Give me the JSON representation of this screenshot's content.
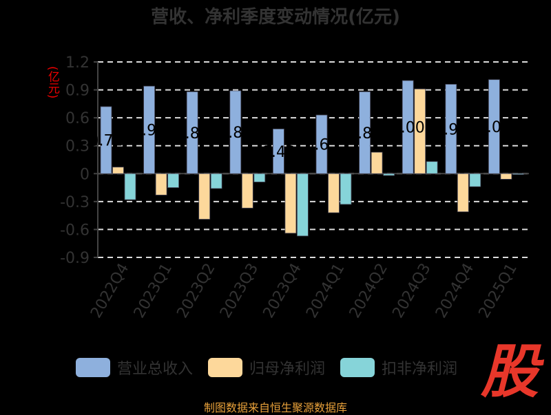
{
  "chart_data": {
    "type": "bar",
    "title": "营收、净利季度变动情况(亿元)",
    "ylabel": "(亿元)",
    "xlabel": "",
    "ylim": [
      -0.9,
      1.2
    ],
    "yticks": [
      "1.2",
      "0.9",
      "0.6",
      "0.3",
      "0",
      "-0.3",
      "-0.6",
      "-0.9"
    ],
    "ytick_values": [
      1.2,
      0.9,
      0.6,
      0.3,
      0,
      -0.3,
      -0.6,
      -0.9
    ],
    "grid": true,
    "legend_position": "bottom",
    "categories": [
      "2022Q4",
      "2023Q1",
      "2023Q2",
      "2023Q3",
      "2023Q4",
      "2024Q1",
      "2024Q2",
      "2024Q3",
      "2024Q4",
      "2025Q1"
    ],
    "series": [
      {
        "name": "营业总收入",
        "color": "#8eb0dd",
        "values": [
          0.72,
          0.94,
          0.88,
          0.89,
          0.48,
          0.63,
          0.88,
          1.0,
          0.96,
          1.01
        ],
        "labels": [
          "0.72",
          "0.94",
          "0.88",
          "0.89",
          "0.48",
          "0.63",
          "0.88",
          "1.00",
          "0.96",
          "1.01"
        ]
      },
      {
        "name": "归母净利润",
        "color": "#fdd89b",
        "values": [
          0.07,
          -0.23,
          -0.49,
          -0.37,
          -0.64,
          -0.42,
          0.23,
          0.91,
          -0.41,
          -0.06
        ]
      },
      {
        "name": "扣非净利润",
        "color": "#86d4d9",
        "values": [
          -0.28,
          -0.15,
          -0.16,
          -0.09,
          -0.67,
          -0.33,
          -0.02,
          0.13,
          -0.14,
          -0.01
        ]
      }
    ]
  },
  "footer": "制图数据来自恒生聚源数据库",
  "logo_text": "股"
}
